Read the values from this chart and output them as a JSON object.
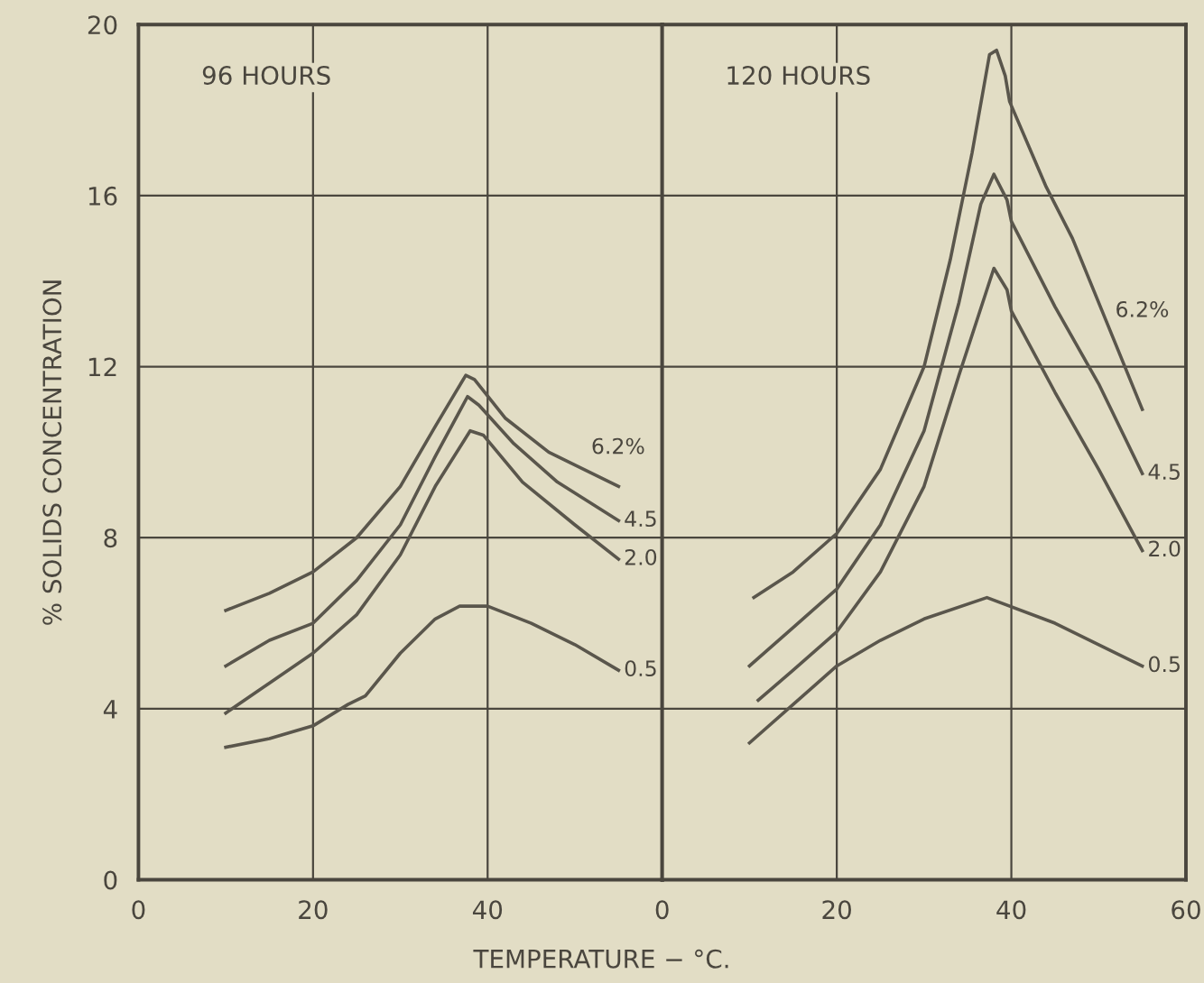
{
  "chart_data": [
    {
      "type": "line",
      "title": "96 HOURS",
      "xlabel": "TEMPERATURE − °C.",
      "ylabel": "% SOLIDS CONCENTRATION",
      "xlim": [
        0,
        60
      ],
      "ylim": [
        0,
        20
      ],
      "xticks": [
        0,
        20,
        40,
        {
          "value": 60,
          "label": null
        }
      ],
      "yticks": [
        0,
        4,
        8,
        12,
        16,
        20
      ],
      "grid": true,
      "series": [
        {
          "name": "6.2%",
          "color": "#5a564c",
          "x": [
            10,
            15,
            20,
            25,
            30,
            34,
            37.5,
            38.5,
            42,
            47,
            55
          ],
          "values": [
            6.3,
            6.7,
            7.2,
            8.0,
            9.2,
            10.6,
            11.8,
            11.7,
            10.8,
            10.0,
            9.2
          ]
        },
        {
          "name": "4.5",
          "color": "#5a564c",
          "x": [
            10,
            15,
            20,
            25,
            30,
            34,
            37.7,
            39,
            43,
            48,
            55
          ],
          "values": [
            5.0,
            5.6,
            6.0,
            7.0,
            8.3,
            9.9,
            11.3,
            11.1,
            10.2,
            9.3,
            8.4
          ]
        },
        {
          "name": "2.0",
          "color": "#5a564c",
          "x": [
            10,
            15,
            20,
            25,
            30,
            34,
            38,
            39.5,
            44,
            50,
            55
          ],
          "values": [
            3.9,
            4.6,
            5.3,
            6.2,
            7.6,
            9.2,
            10.5,
            10.4,
            9.3,
            8.3,
            7.5
          ]
        },
        {
          "name": "0.5",
          "color": "#5a564c",
          "x": [
            10,
            15,
            20,
            24,
            26,
            30,
            34,
            36.8,
            40,
            45,
            50,
            55
          ],
          "values": [
            3.1,
            3.3,
            3.6,
            4.1,
            4.3,
            5.3,
            6.1,
            6.4,
            6.4,
            6.0,
            5.5,
            4.9
          ]
        }
      ]
    },
    {
      "type": "line",
      "title": "120 HOURS",
      "xlim": [
        0,
        60
      ],
      "ylim": [
        0,
        20
      ],
      "xticks": [
        0,
        20,
        40,
        60
      ],
      "yticks": [
        0,
        4,
        8,
        12,
        16,
        20
      ],
      "grid": true,
      "tick_labels": "x",
      "series": [
        {
          "name": "6.2%",
          "color": "#5a564c",
          "x": [
            10.5,
            15,
            20,
            25,
            30,
            33,
            35.5,
            37.5,
            38.3,
            39.3,
            39.8,
            44,
            47,
            51,
            55
          ],
          "values": [
            6.6,
            7.2,
            8.1,
            9.6,
            12.0,
            14.5,
            17.0,
            19.3,
            19.4,
            18.8,
            18.2,
            16.2,
            15.0,
            13.0,
            11.0
          ]
        },
        {
          "name": "4.5",
          "color": "#5a564c",
          "x": [
            10,
            15,
            20,
            25,
            30,
            34,
            36.5,
            38,
            39.5,
            40,
            45,
            50,
            55
          ],
          "values": [
            5.0,
            5.9,
            6.8,
            8.3,
            10.5,
            13.5,
            15.8,
            16.5,
            15.9,
            15.4,
            13.4,
            11.6,
            9.5
          ]
        },
        {
          "name": "2.0",
          "color": "#5a564c",
          "x": [
            11,
            15,
            20,
            25,
            30,
            34,
            38,
            39.5,
            40,
            45,
            50,
            55
          ],
          "values": [
            4.2,
            4.9,
            5.8,
            7.2,
            9.2,
            11.8,
            14.3,
            13.8,
            13.3,
            11.4,
            9.6,
            7.7
          ]
        },
        {
          "name": "0.5",
          "color": "#5a564c",
          "x": [
            10,
            15,
            20,
            25,
            30,
            37.2,
            45,
            50,
            55
          ],
          "values": [
            3.2,
            4.1,
            5.0,
            5.6,
            6.1,
            6.6,
            6.0,
            5.5,
            5.0
          ]
        }
      ]
    }
  ]
}
